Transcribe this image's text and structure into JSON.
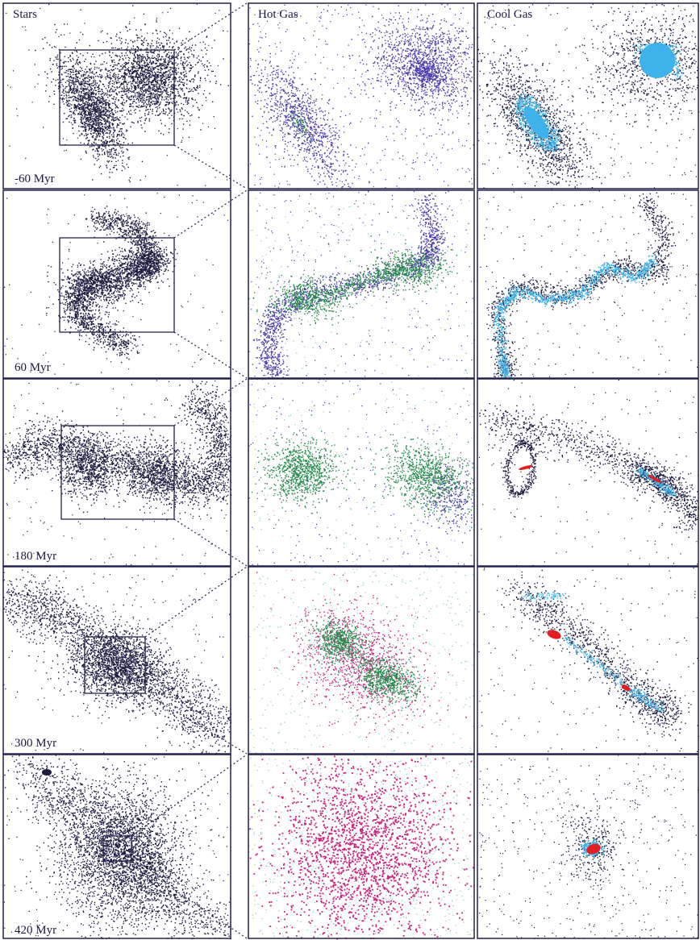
{
  "column_titles": [
    "Stars",
    "Hot Gas",
    "Cool Gas"
  ],
  "time_labels": [
    "-60 Myr",
    "60 Myr",
    "180 Myr",
    "300 Myr",
    "420 Myr"
  ]
}
